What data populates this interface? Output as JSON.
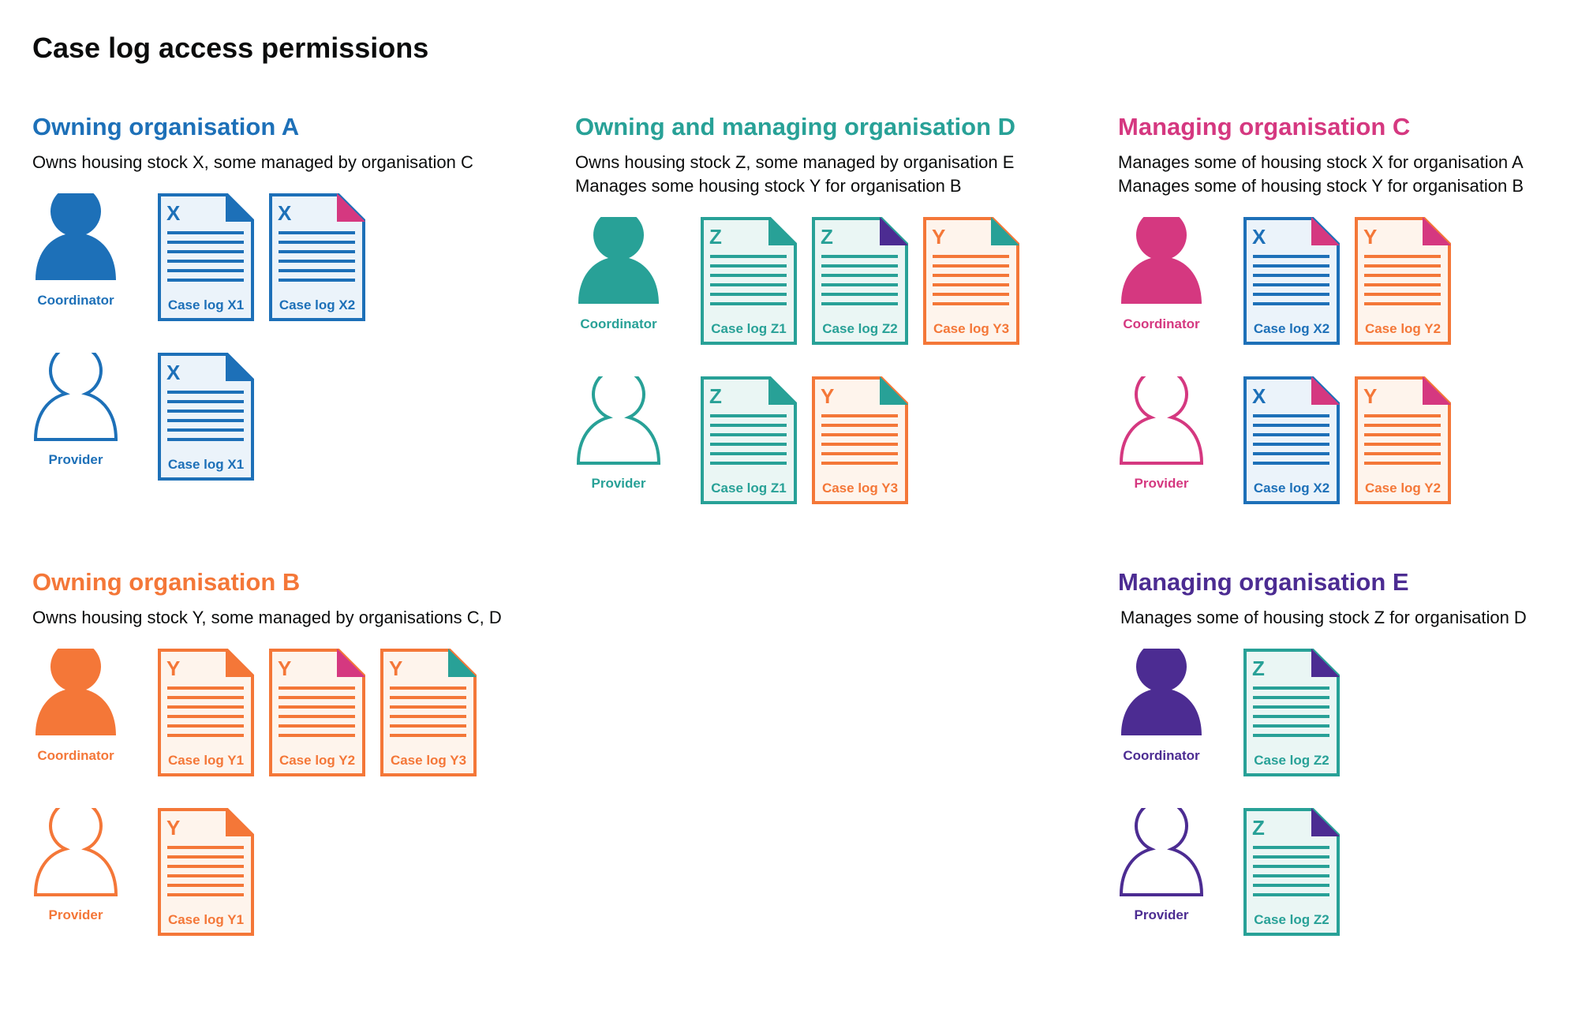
{
  "title": "Case log access permissions",
  "colors": {
    "blue": "#1d70b8",
    "teal": "#28a197",
    "pink": "#d53880",
    "orange": "#f47738",
    "purple": "#4c2c92"
  },
  "tints": {
    "blue": "#ebf3fa",
    "teal": "#eaf6f4",
    "orange": "#fef4ec"
  },
  "orgs": [
    {
      "heading": "Owning organisation A",
      "color": "blue",
      "descriptions": [
        "Owns housing stock X, some managed by organisation C"
      ],
      "roles": [
        {
          "label": "Coordinator",
          "icon": "person-filled-icon",
          "docs": [
            {
              "letter": "X",
              "label": "Case log X1",
              "color": "blue",
              "fold": "blue"
            },
            {
              "letter": "X",
              "label": "Case log X2",
              "color": "blue",
              "fold": "pink"
            }
          ]
        },
        {
          "label": "Provider",
          "icon": "person-outline-icon",
          "docs": [
            {
              "letter": "X",
              "label": "Case log X1",
              "color": "blue",
              "fold": "blue"
            }
          ]
        }
      ]
    },
    {
      "heading": "Owning and managing organisation D",
      "color": "teal",
      "descriptions": [
        "Owns housing stock Z, some managed by organisation E",
        "Manages some housing stock Y for organisation B"
      ],
      "roles": [
        {
          "label": "Coordinator",
          "icon": "person-filled-icon",
          "docs": [
            {
              "letter": "Z",
              "label": "Case log Z1",
              "color": "teal",
              "fold": "teal"
            },
            {
              "letter": "Z",
              "label": "Case log Z2",
              "color": "teal",
              "fold": "purple"
            },
            {
              "letter": "Y",
              "label": "Case log Y3",
              "color": "orange",
              "fold": "teal"
            }
          ]
        },
        {
          "label": "Provider",
          "icon": "person-outline-icon",
          "docs": [
            {
              "letter": "Z",
              "label": "Case log Z1",
              "color": "teal",
              "fold": "teal"
            },
            {
              "letter": "Y",
              "label": "Case log Y3",
              "color": "orange",
              "fold": "teal"
            }
          ]
        }
      ]
    },
    {
      "heading": "Managing organisation C",
      "color": "pink",
      "descriptions": [
        "Manages some of housing stock X for organisation A",
        "Manages some of housing stock Y for organisation B"
      ],
      "roles": [
        {
          "label": "Coordinator",
          "icon": "person-filled-icon",
          "docs": [
            {
              "letter": "X",
              "label": "Case log X2",
              "color": "blue",
              "fold": "pink"
            },
            {
              "letter": "Y",
              "label": "Case log Y2",
              "color": "orange",
              "fold": "pink"
            }
          ]
        },
        {
          "label": "Provider",
          "icon": "person-outline-icon",
          "docs": [
            {
              "letter": "X",
              "label": "Case log X2",
              "color": "blue",
              "fold": "pink"
            },
            {
              "letter": "Y",
              "label": "Case log Y2",
              "color": "orange",
              "fold": "pink"
            }
          ]
        }
      ]
    },
    {
      "heading": "Owning organisation B",
      "color": "orange",
      "descriptions": [
        "Owns housing stock Y, some managed by organisations C, D"
      ],
      "roles": [
        {
          "label": "Coordinator",
          "icon": "person-filled-icon",
          "docs": [
            {
              "letter": "Y",
              "label": "Case log Y1",
              "color": "orange",
              "fold": "orange"
            },
            {
              "letter": "Y",
              "label": "Case log Y2",
              "color": "orange",
              "fold": "pink"
            },
            {
              "letter": "Y",
              "label": "Case log Y3",
              "color": "orange",
              "fold": "teal"
            }
          ]
        },
        {
          "label": "Provider",
          "icon": "person-outline-icon",
          "docs": [
            {
              "letter": "Y",
              "label": "Case log Y1",
              "color": "orange",
              "fold": "orange"
            }
          ]
        }
      ]
    },
    {
      "heading": "Managing organisation E",
      "color": "purple",
      "descriptions": [
        "Manages some of housing stock Z for organisation D"
      ],
      "roles": [
        {
          "label": "Coordinator",
          "icon": "person-filled-icon",
          "docs": [
            {
              "letter": "Z",
              "label": "Case log Z2",
              "color": "teal",
              "fold": "purple"
            }
          ]
        },
        {
          "label": "Provider",
          "icon": "person-outline-icon",
          "docs": [
            {
              "letter": "Z",
              "label": "Case log Z2",
              "color": "teal",
              "fold": "purple"
            }
          ]
        }
      ]
    }
  ]
}
